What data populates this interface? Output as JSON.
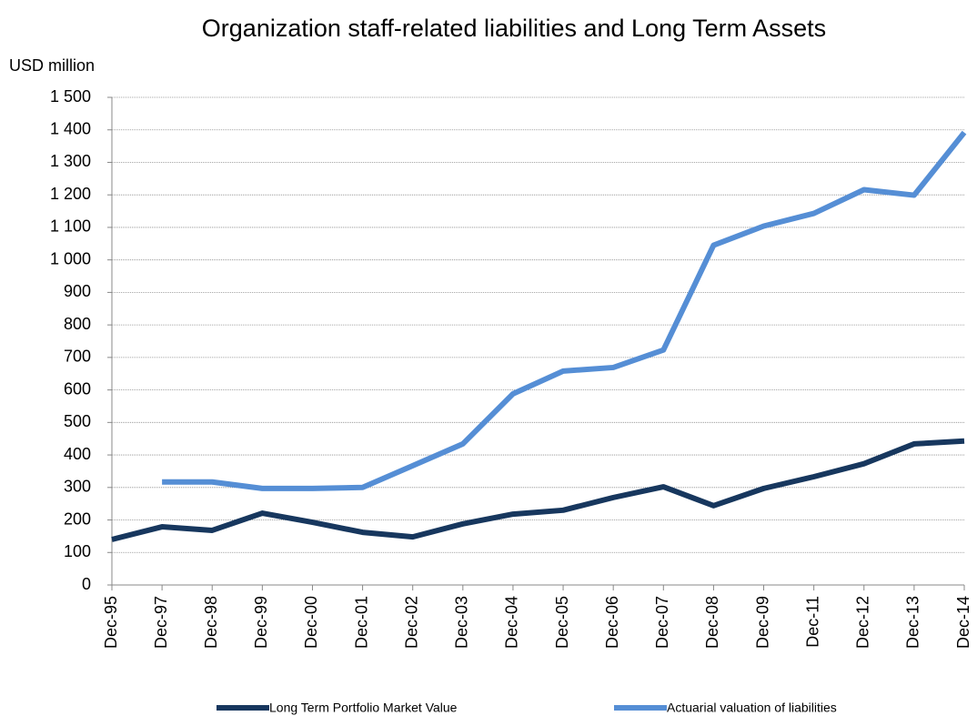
{
  "chart_data": {
    "type": "line",
    "title": "Organization staff-related liabilities and Long Term Assets",
    "y_label": "USD million",
    "categories": [
      "Dec-95",
      "Dec-97",
      "Dec-98",
      "Dec-99",
      "Dec-00",
      "Dec-01",
      "Dec-02",
      "Dec-03",
      "Dec-04",
      "Dec-05",
      "Dec-06",
      "Dec-07",
      "Dec-08",
      "Dec-09",
      "Dec-11",
      "Dec-12",
      "Dec-13",
      "Dec-14"
    ],
    "series": [
      {
        "name": "Long Term Portfolio Market Value",
        "color": "#17375e",
        "values": [
          140,
          179,
          168,
          221,
          193,
          162,
          148,
          188,
          218,
          230,
          269,
          302,
          244,
          297,
          333,
          373,
          434,
          443
        ]
      },
      {
        "name": "Actuarial valuation of liabilities",
        "color": "#558ed5",
        "values": [
          null,
          317,
          317,
          297,
          297,
          300,
          367,
          434,
          588,
          658,
          669,
          723,
          1045,
          1104,
          1143,
          1216,
          1199,
          1392
        ]
      }
    ],
    "ylim": [
      0,
      1500
    ],
    "yticks": [
      0,
      100,
      200,
      300,
      400,
      500,
      600,
      700,
      800,
      900,
      {
        "value": 1000,
        "label": "1 000"
      },
      {
        "value": 1100,
        "label": "1 100"
      },
      {
        "value": 1200,
        "label": "1 200"
      },
      {
        "value": 1300,
        "label": "1 300"
      },
      {
        "value": 1400,
        "label": "1 400"
      },
      {
        "value": 1500,
        "label": "1 500"
      }
    ],
    "grid": true,
    "legend": "bottom"
  }
}
